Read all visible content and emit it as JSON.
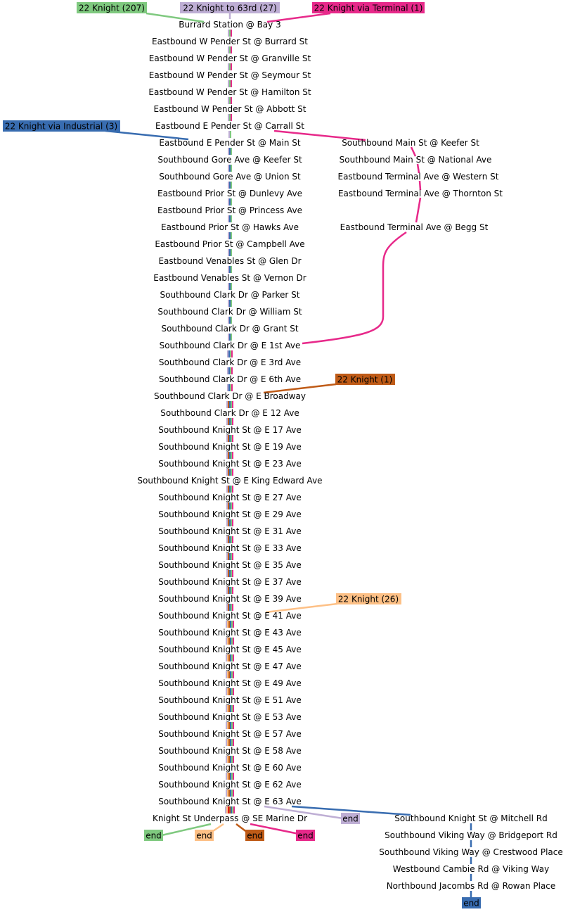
{
  "route_labels": {
    "k207": "22 Knight (207)",
    "k63": "22 Knight to 63rd (27)",
    "kterm": "22 Knight via Terminal (1)",
    "kind": "22 Knight via Industrial (3)",
    "k1": "22 Knight (1)",
    "k26": "22 Knight (26)"
  },
  "route_colors": {
    "k207": "#7fc97f",
    "k63": "#beaed4",
    "kterm": "#e7298a",
    "kind": "#386cb0",
    "k1": "#bf5b17",
    "k26": "#fdc086",
    "red": "#e31a1c"
  },
  "end_label": "end",
  "main_stops": [
    "Burrard Station @ Bay 3",
    "Eastbound W Pender St @ Burrard St",
    "Eastbound W Pender St @ Granville St",
    "Eastbound W Pender St @ Seymour St",
    "Eastbound W Pender St @ Hamilton St",
    "Eastbound W Pender St @ Abbott St",
    "Eastbound E Pender St @ Carrall St",
    "Eastbound E Pender St @ Main St",
    "Southbound Gore Ave @ Keefer St",
    "Southbound Gore Ave @ Union St",
    "Eastbound Prior St @ Dunlevy Ave",
    "Eastbound Prior St @ Princess Ave",
    "Eastbound Prior St @ Hawks Ave",
    "Eastbound Prior St @ Campbell Ave",
    "Eastbound Venables St @ Glen Dr",
    "Eastbound Venables St @ Vernon Dr",
    "Southbound Clark Dr @ Parker St",
    "Southbound Clark Dr @ William St",
    "Southbound Clark Dr @ Grant St",
    "Southbound Clark Dr @ E 1st Ave",
    "Southbound Clark Dr @ E 3rd Ave",
    "Southbound Clark Dr @ E 6th Ave",
    "Southbound Clark Dr @ E Broadway",
    "Southbound Clark Dr @ E 12 Ave",
    "Southbound Knight St @ E 17 Ave",
    "Southbound Knight St @ E 19 Ave",
    "Southbound Knight St @ E 23 Ave",
    "Southbound Knight St @ E King Edward Ave",
    "Southbound Knight St @ E 27 Ave",
    "Southbound Knight St @ E 29 Ave",
    "Southbound Knight St @ E 31 Ave",
    "Southbound Knight St @ E 33 Ave",
    "Southbound Knight St @ E 35 Ave",
    "Southbound Knight St @ E 37 Ave",
    "Southbound Knight St @ E 39 Ave",
    "Southbound Knight St @ E 41 Ave",
    "Southbound Knight St @ E 43 Ave",
    "Southbound Knight St @ E 45 Ave",
    "Southbound Knight St @ E 47 Ave",
    "Southbound Knight St @ E 49 Ave",
    "Southbound Knight St @ E 51 Ave",
    "Southbound Knight St @ E 53 Ave",
    "Southbound Knight St @ E 57 Ave",
    "Southbound Knight St @ E 58 Ave",
    "Southbound Knight St @ E 60 Ave",
    "Southbound Knight St @ E 62 Ave",
    "Southbound Knight St @ E 63 Ave",
    "Knight St Underpass @ SE Marine Dr"
  ],
  "terminal_branch_stops": [
    "Southbound Main St @ Keefer St",
    "Southbound Main St @ National Ave",
    "Eastbound Terminal Ave @ Western St",
    "Eastbound Terminal Ave @ Thornton St",
    "Eastbound Terminal Ave @ Begg St"
  ],
  "industrial_branch_stops": [
    "Southbound Knight St @ Mitchell Rd",
    "Southbound Viking Way @ Bridgeport Rd",
    "Southbound Viking Way @ Crestwood Place",
    "Westbound Cambie Rd @ Viking Way",
    "Northbound Jacombs Rd @ Rowan Place"
  ]
}
